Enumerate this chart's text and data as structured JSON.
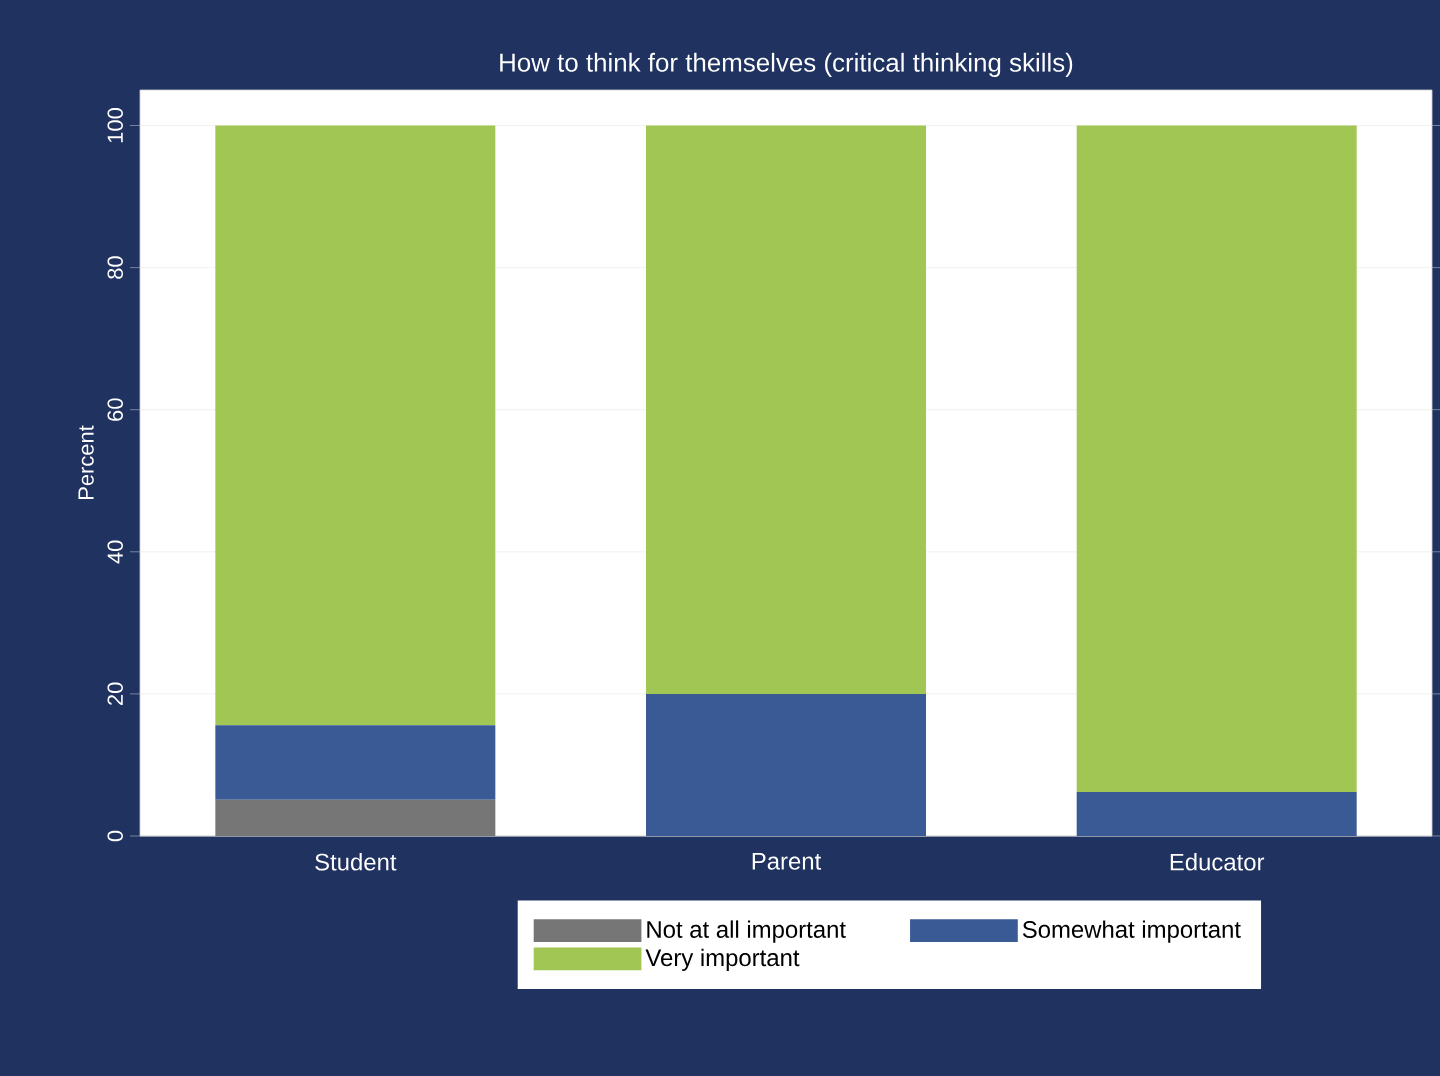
{
  "chart_data": {
    "type": "bar",
    "stacked": true,
    "title": "How to think for themselves (critical thinking skills)",
    "ylabel": "Percent",
    "categories": [
      "Student",
      "Parent",
      "Educator"
    ],
    "series": [
      {
        "name": "Not at all important",
        "color": "#767676",
        "values": [
          5.1,
          0,
          0
        ]
      },
      {
        "name": "Somewhat important",
        "color": "#3a5a96",
        "values": [
          10.5,
          20,
          6.2
        ]
      },
      {
        "name": "Very important",
        "color": "#a2c653",
        "values": [
          84.4,
          80,
          93.8
        ]
      }
    ],
    "ylim": [
      0,
      105
    ],
    "yticks": [
      0,
      20,
      40,
      60,
      80,
      100
    ],
    "grid": "y",
    "legend": "bottom"
  }
}
